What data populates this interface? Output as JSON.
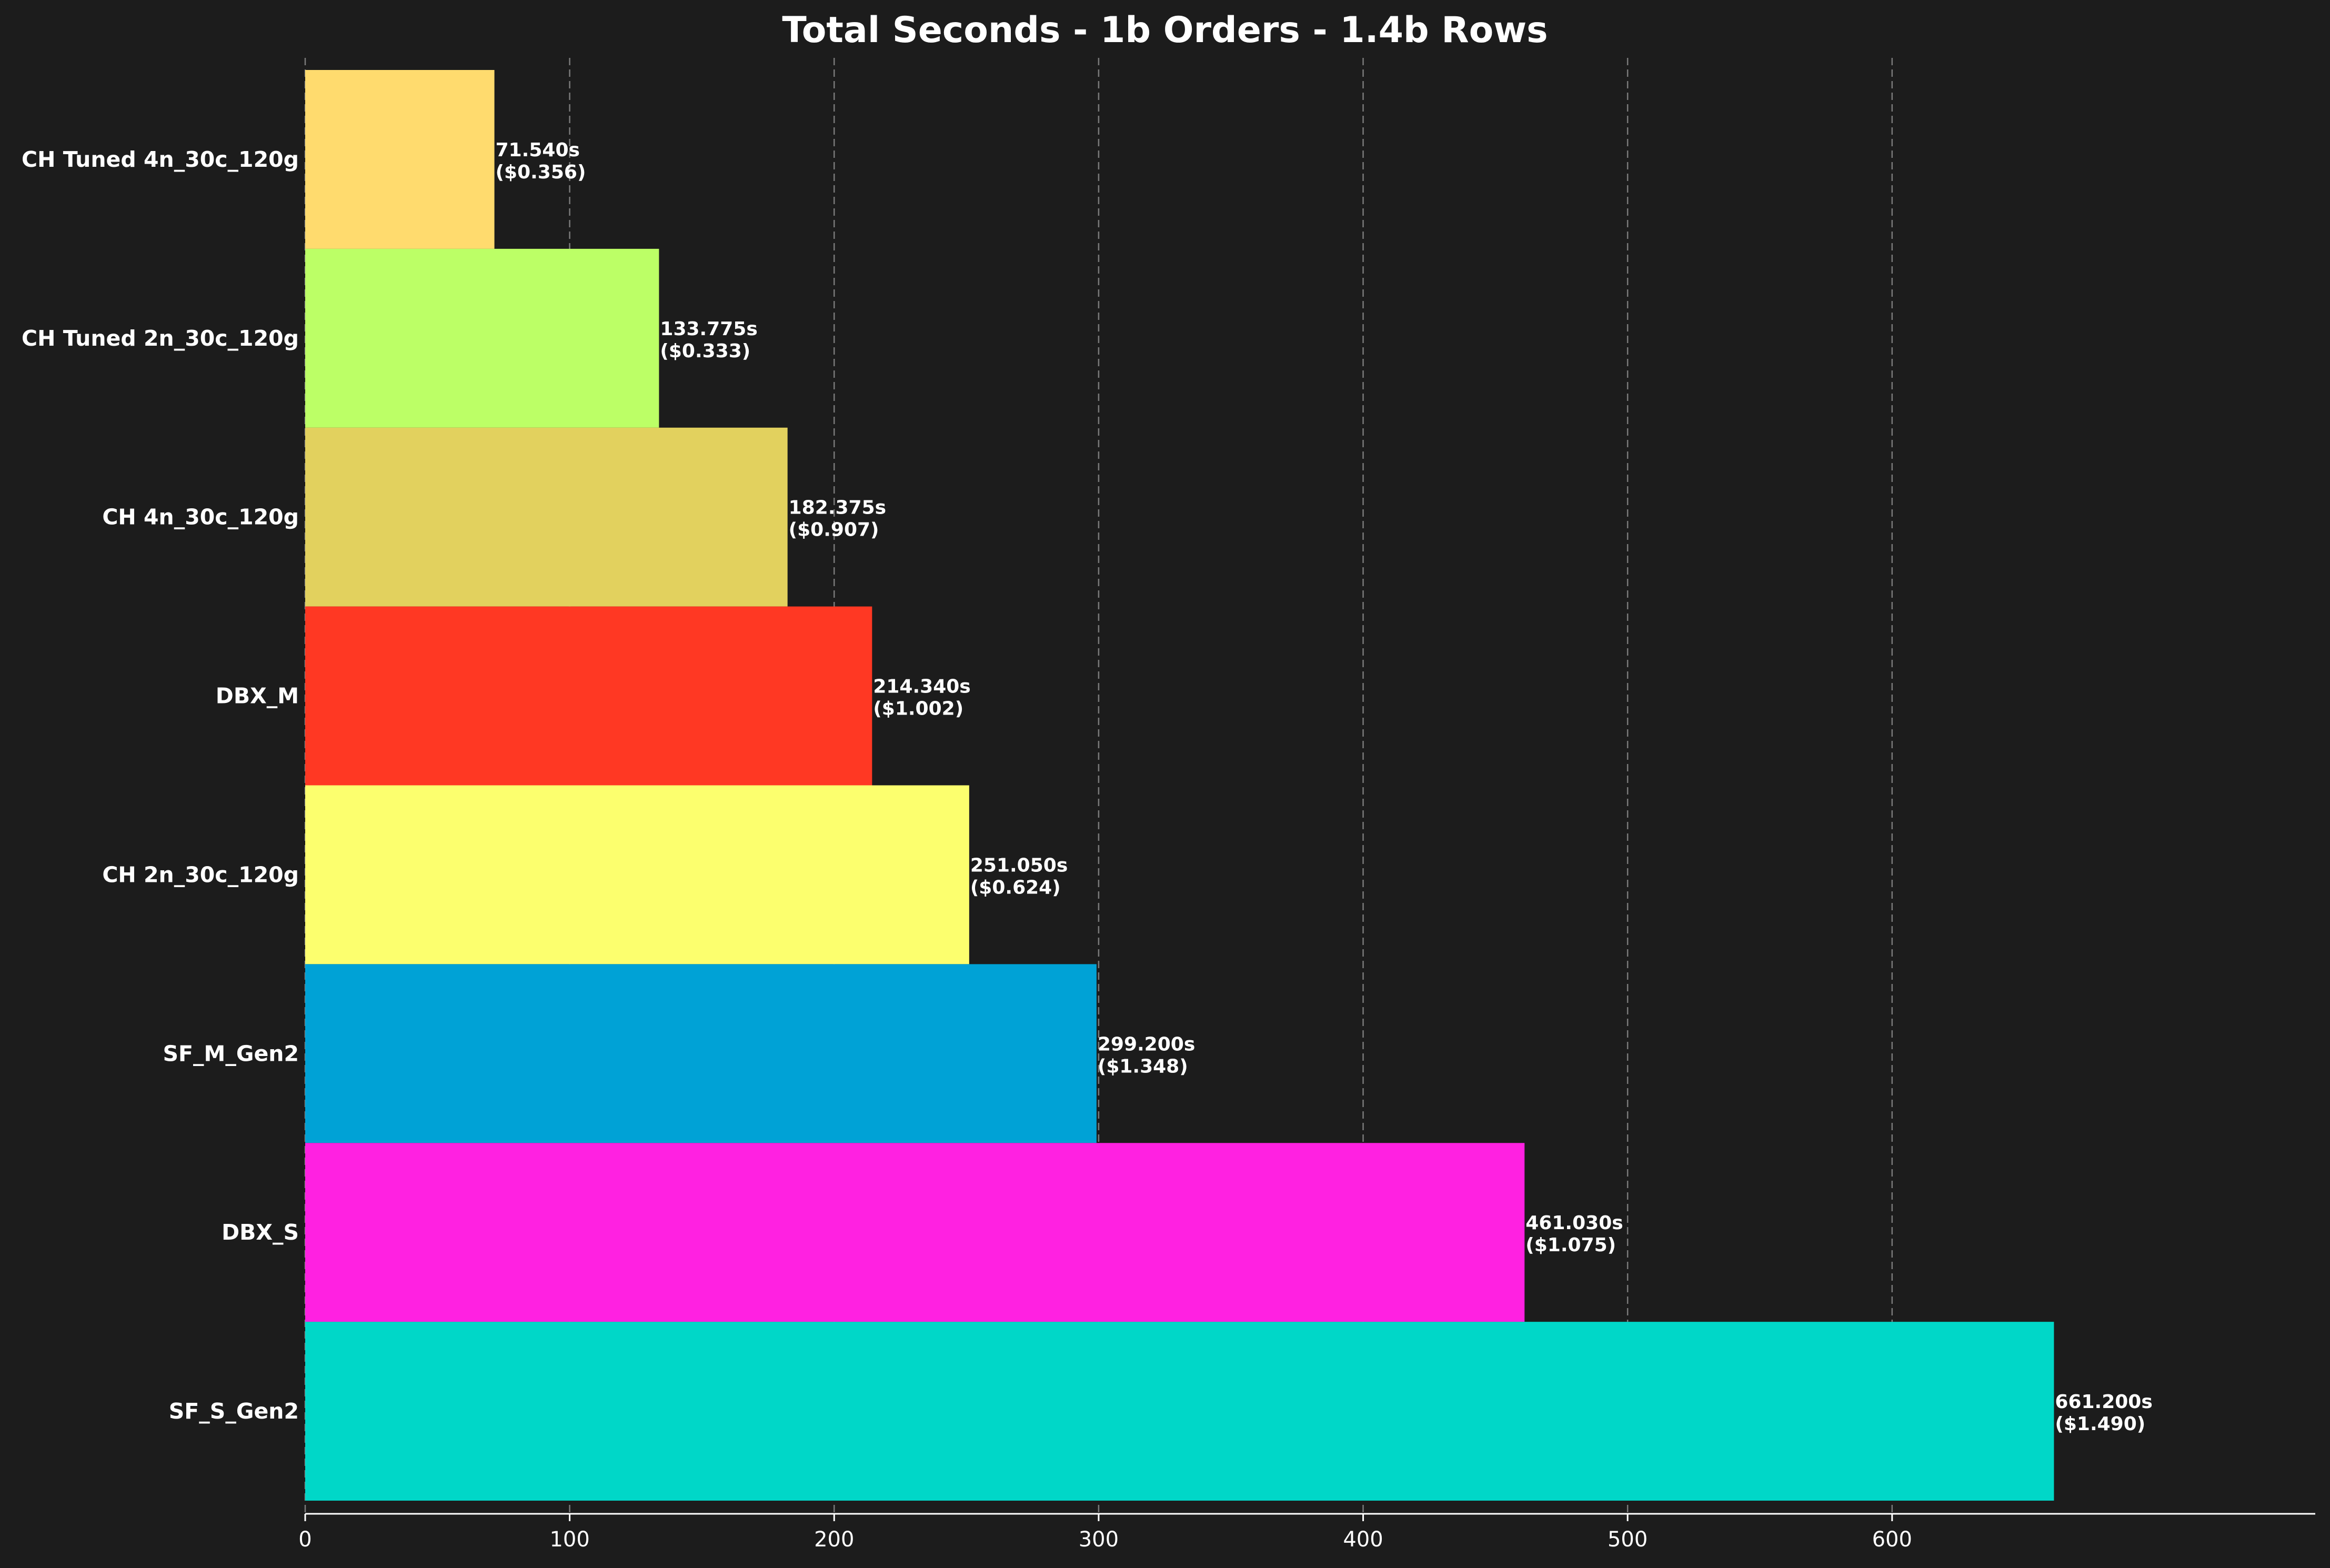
{
  "chart_data": {
    "type": "bar",
    "orientation": "horizontal",
    "title": "Total Seconds - 1b Orders - 1.4b Rows",
    "xlabel": "",
    "ylabel": "",
    "xlim": [
      0,
      760
    ],
    "xticks": [
      0,
      100,
      200,
      300,
      400,
      500,
      600
    ],
    "grid": "x, dashed",
    "legend": "none",
    "background": "#1c1c1c",
    "categories": [
      "CH Tuned 4n_30c_120g",
      "CH Tuned 2n_30c_120g",
      "CH 4n_30c_120g",
      "DBX_M",
      "CH 2n_30c_120g",
      "SF_M_Gen2",
      "DBX_S",
      "SF_S_Gen2"
    ],
    "values": [
      71.54,
      133.775,
      182.375,
      214.34,
      251.05,
      299.2,
      461.03,
      661.2
    ],
    "value_labels": [
      "71.540s",
      "133.775s",
      "182.375s",
      "214.340s",
      "251.050s",
      "299.200s",
      "461.030s",
      "661.200s"
    ],
    "cost_labels": [
      "($0.356)",
      "($0.333)",
      "($0.907)",
      "($1.002)",
      "($0.624)",
      "($1.348)",
      "($1.075)",
      "($1.490)"
    ],
    "colors": [
      "#ffdb6e",
      "#bcff66",
      "#e2d15e",
      "#ff3823",
      "#fcff6e",
      "#00a2d6",
      "#ff21e1",
      "#00d7c8"
    ]
  }
}
